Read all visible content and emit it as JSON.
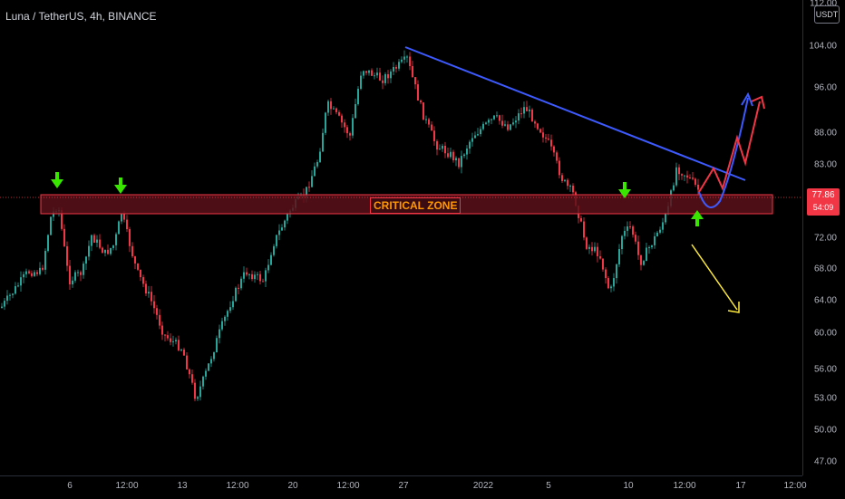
{
  "header": {
    "symbol": "Luna / TetherUS, 4h, BINANCE"
  },
  "price_axis": {
    "currency": "USDT",
    "top_tick": "112.00",
    "ticks": [
      "104.00",
      "96.00",
      "88.00",
      "83.00",
      "72.00",
      "68.00",
      "64.00",
      "60.00",
      "56.00",
      "53.00",
      "50.00",
      "47.00"
    ]
  },
  "current_price": {
    "price": "77.86",
    "countdown": "54:09"
  },
  "time_axis": {
    "ticks": [
      "6",
      "12:00",
      "13",
      "12:00",
      "20",
      "12:00",
      "27",
      "2022",
      "5",
      "10",
      "12:00",
      "17",
      "12:00"
    ]
  },
  "annotations": {
    "zone_label": "CRITICAL ZONE"
  },
  "colors": {
    "bull": "#26a69a",
    "bear": "#f23645",
    "trendline": "#3d5afe",
    "arrow_green": "#39e600",
    "arrow_red": "#f23645",
    "arrow_yellow": "#ffeb3b",
    "zone_fill": "#5c1119",
    "zone_border": "#f23645",
    "label_text": "#ff9800"
  }
}
